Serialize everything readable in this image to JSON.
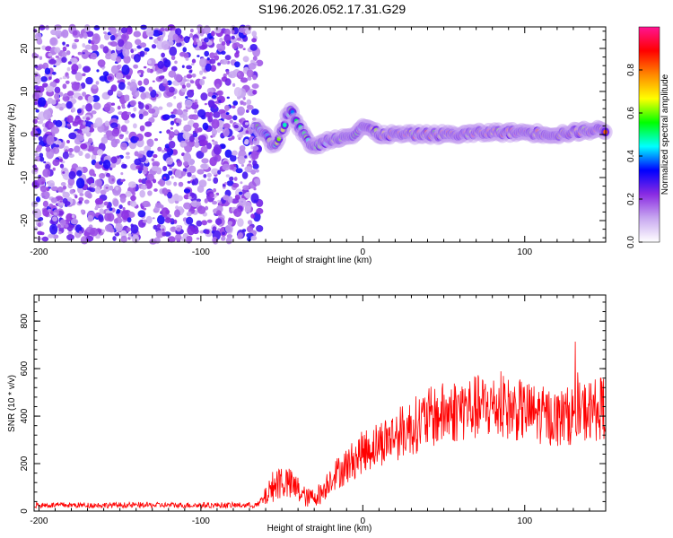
{
  "title": "S196.2026.052.17.31.G29",
  "chart_data": [
    {
      "type": "heatmap",
      "xlabel": "Height of straight line (km)",
      "ylabel": "Frequency (Hz)",
      "xlim": [
        -203,
        150
      ],
      "ylim": [
        -25,
        25
      ],
      "xticks": [
        -200,
        -100,
        0,
        100
      ],
      "xtick_labels": [
        "-200",
        "-100",
        "0",
        "100"
      ],
      "yticks": [
        -20,
        -10,
        0,
        10,
        20
      ],
      "ytick_labels": [
        "-20",
        "-10",
        "0",
        "10",
        "20"
      ],
      "noise_region_x": [
        -203,
        -67
      ],
      "ridge": {
        "x": [
          -65,
          -60,
          -55,
          -50,
          -45,
          -40,
          -35,
          -30,
          -25,
          -20,
          -15,
          -10,
          -5,
          0,
          5,
          10,
          20,
          40,
          60,
          80,
          100,
          120,
          140,
          150
        ],
        "freq_hz": [
          2,
          0,
          -3,
          1,
          6,
          2,
          -1,
          -3,
          -2,
          -1,
          -1,
          0,
          0,
          2,
          1,
          0,
          0,
          0,
          0,
          0.5,
          0.5,
          0,
          1,
          1
        ]
      },
      "colorbar": {
        "label": "Normalized spectral amplitude",
        "range": [
          0,
          1
        ],
        "ticks": [
          0.0,
          0.2,
          0.4,
          0.6,
          0.8
        ],
        "tick_labels": [
          "0.0",
          "0.2",
          "0.4",
          "0.6",
          "0.8"
        ],
        "colormap": [
          "#ffffff",
          "#c8a8f0",
          "#8a2be2",
          "#0000ff",
          "#00ffff",
          "#00ff00",
          "#ffff00",
          "#ff8800",
          "#ff0000",
          "#ff1493"
        ]
      }
    },
    {
      "type": "line",
      "xlabel": "Height of straight line (km)",
      "ylabel": "SNR (10 * v/v)",
      "xlim": [
        -203,
        150
      ],
      "ylim": [
        0,
        910
      ],
      "xticks": [
        -200,
        -100,
        0,
        100
      ],
      "xtick_labels": [
        "-200",
        "-100",
        "0",
        "100"
      ],
      "yticks": [
        0,
        200,
        400,
        600,
        800
      ],
      "ytick_labels": [
        "0",
        "200",
        "400",
        "600",
        "800"
      ],
      "color": "#ff0000",
      "envelope": {
        "x": [
          -203,
          -65,
          -60,
          -55,
          -50,
          -40,
          -35,
          -30,
          -25,
          -20,
          -10,
          0,
          20,
          40,
          60,
          80,
          100,
          120,
          150
        ],
        "mean": [
          25,
          25,
          60,
          110,
          130,
          90,
          55,
          60,
          80,
          140,
          190,
          250,
          320,
          390,
          430,
          440,
          420,
          390,
          440
        ],
        "spread": [
          12,
          12,
          40,
          70,
          80,
          60,
          40,
          40,
          50,
          60,
          80,
          90,
          110,
          130,
          140,
          140,
          130,
          120,
          140
        ]
      }
    }
  ]
}
